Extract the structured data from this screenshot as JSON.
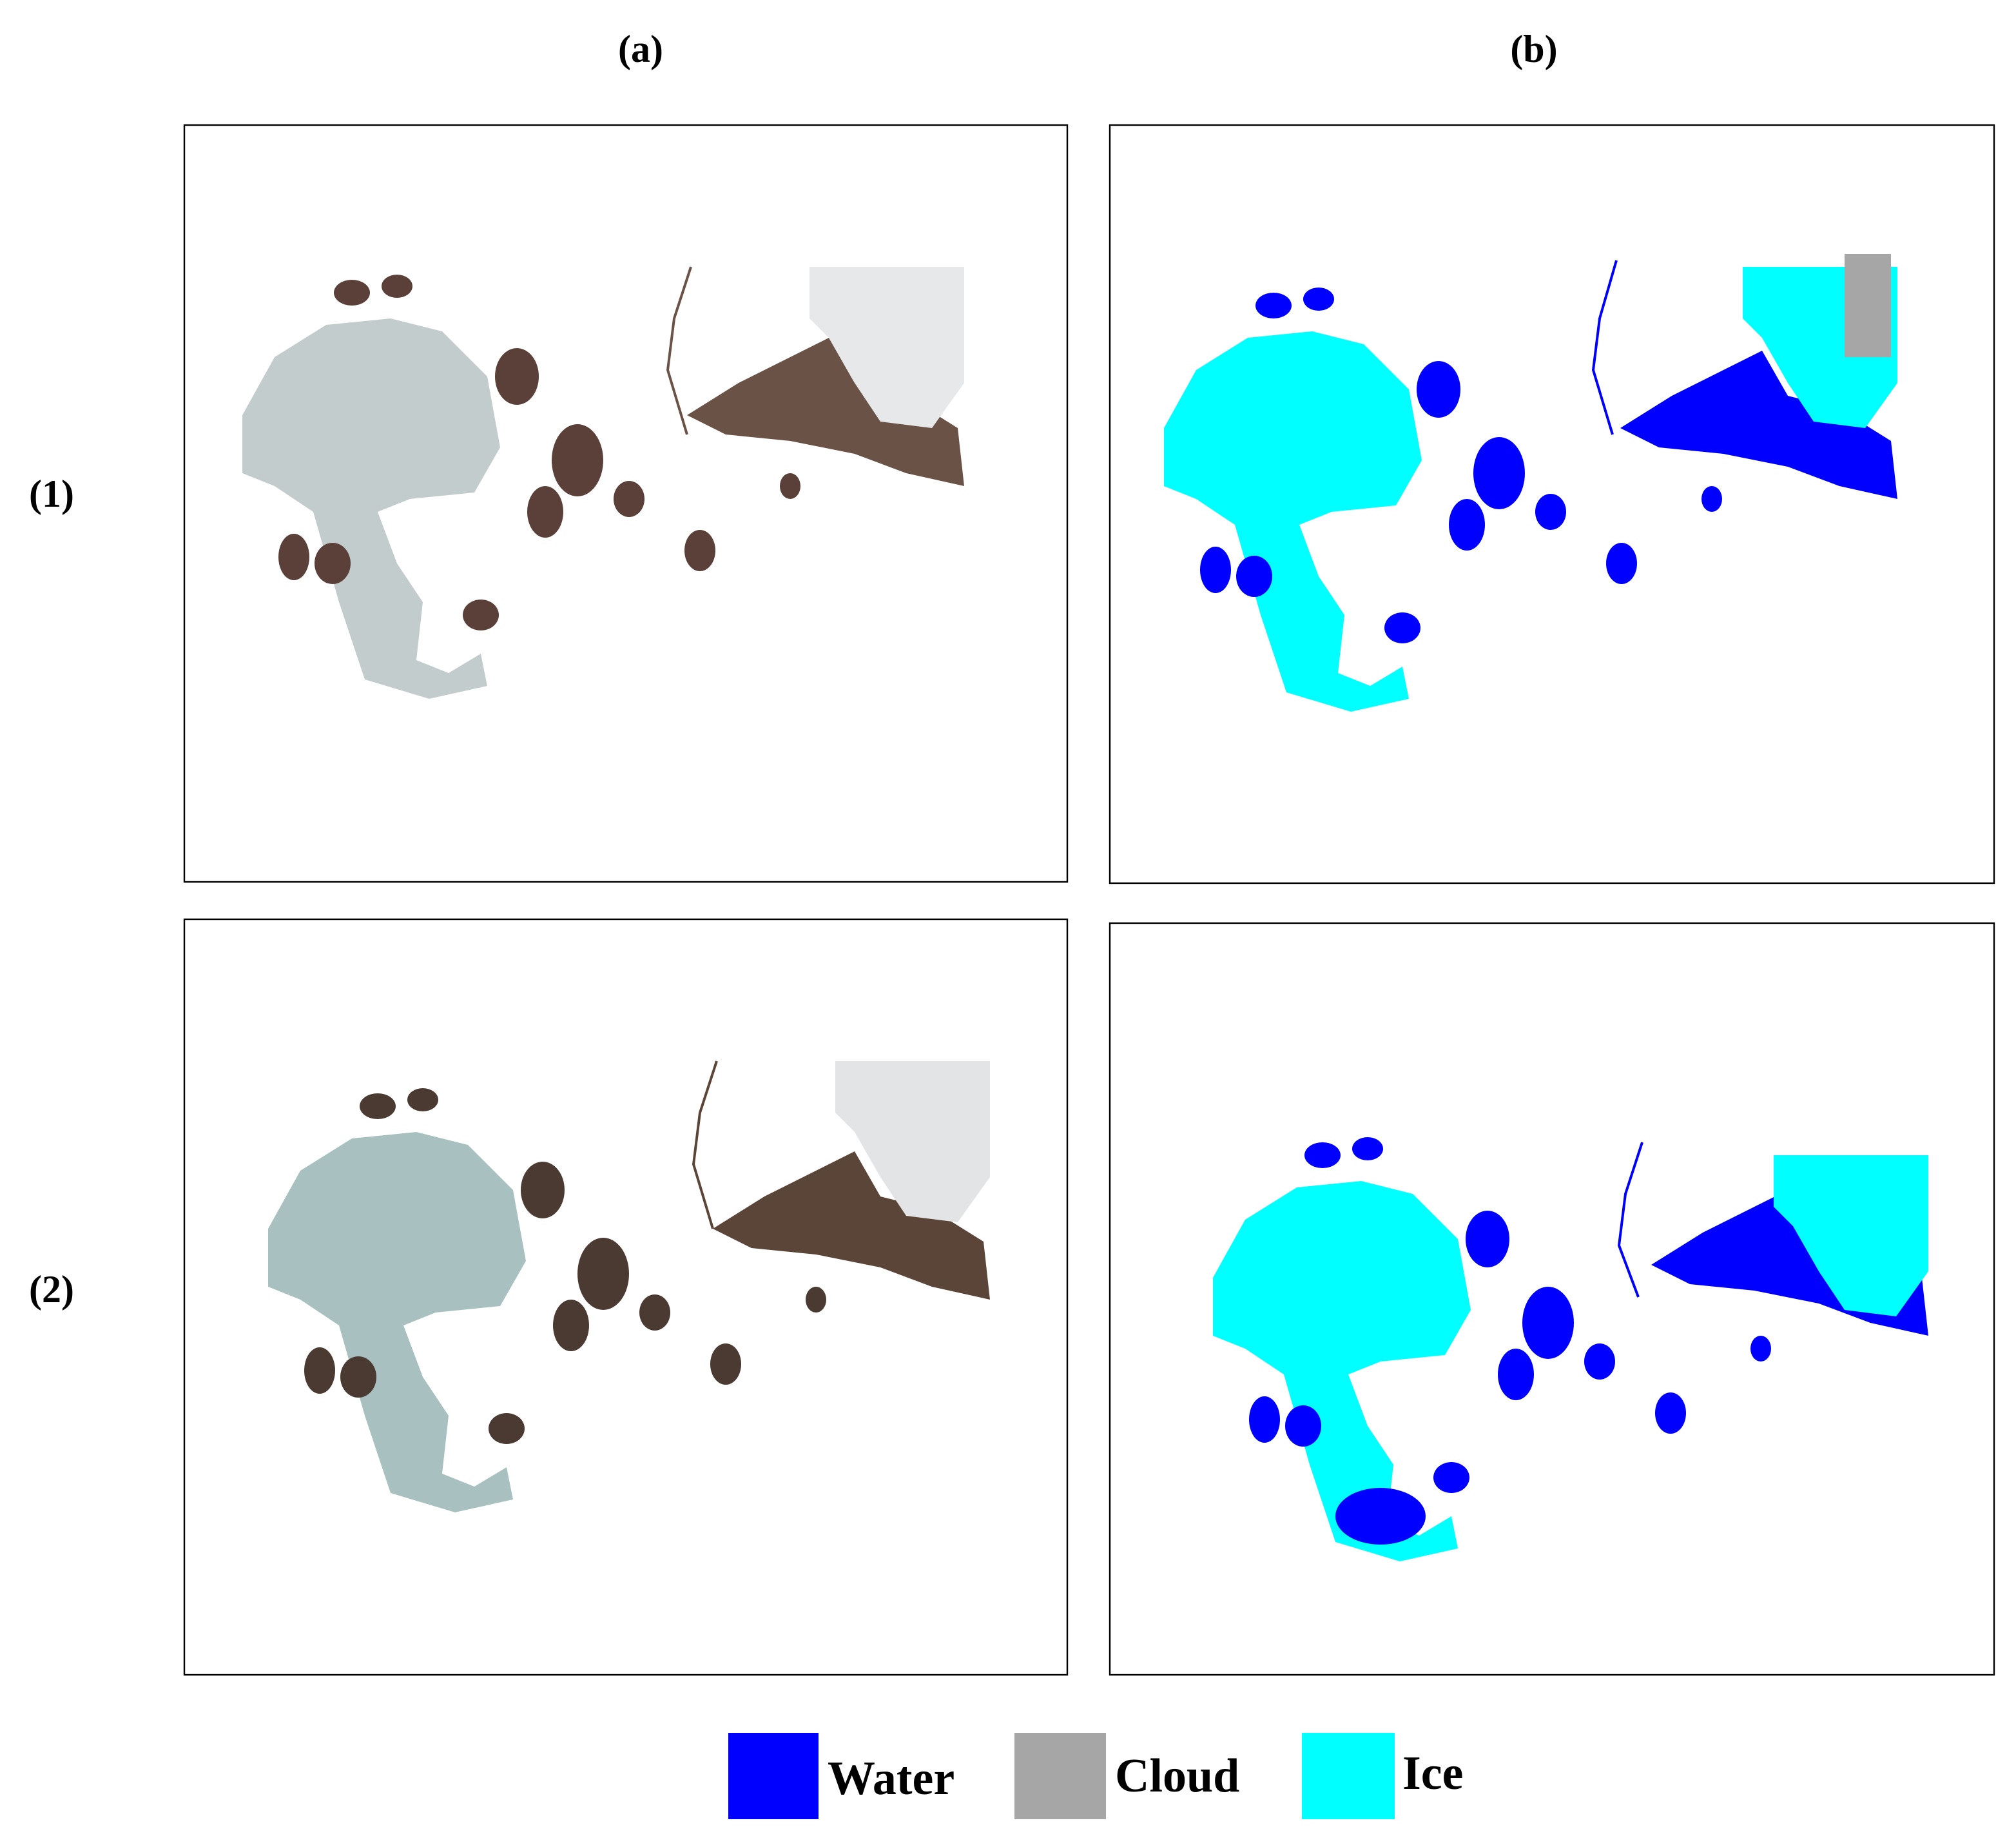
{
  "column_labels": [
    "(a)",
    "(b)"
  ],
  "row_labels": [
    "(1)",
    "(2)"
  ],
  "legend": [
    {
      "label": "Water",
      "color": "#0000ff"
    },
    {
      "label": "Cloud",
      "color": "#a6a6a6"
    },
    {
      "label": "Ice",
      "color": "#00ffff"
    }
  ]
}
